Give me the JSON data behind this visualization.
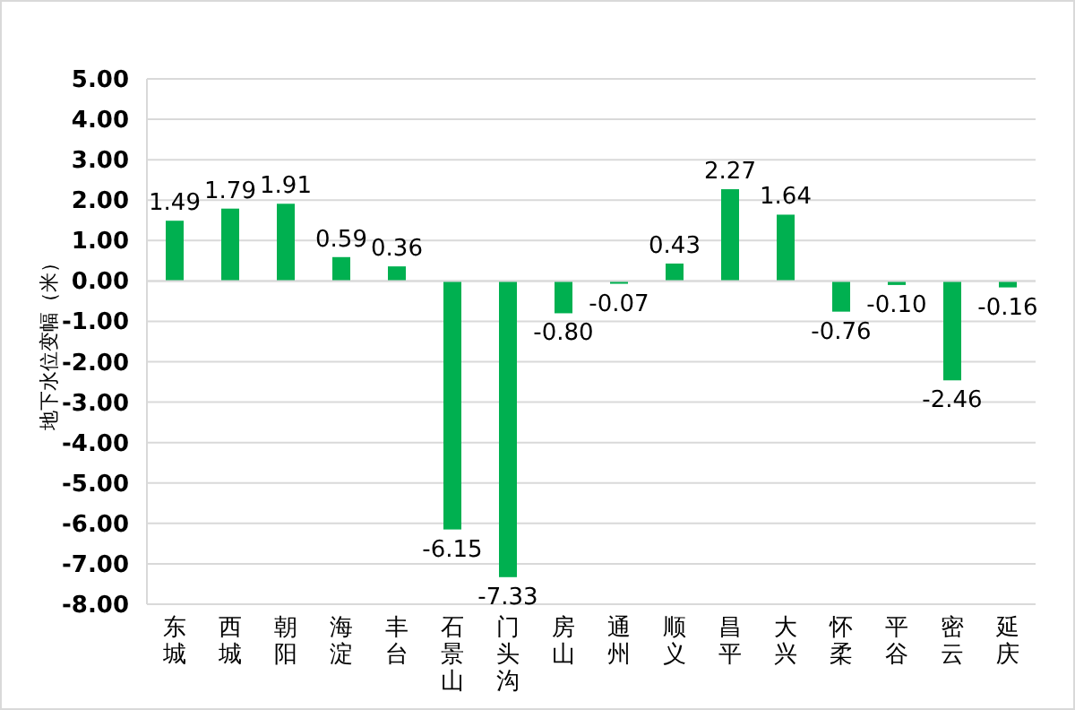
{
  "chart_data": {
    "type": "bar",
    "ylabel": "地下水位变幅（米）",
    "categories": [
      "东城",
      "西城",
      "朝阳",
      "海淀",
      "丰台",
      "石景山",
      "门头沟",
      "房山",
      "通州",
      "顺义",
      "昌平",
      "大兴",
      "怀柔",
      "平谷",
      "密云",
      "延庆"
    ],
    "values": [
      1.49,
      1.79,
      1.91,
      0.59,
      0.36,
      -6.15,
      -7.33,
      -0.8,
      -0.07,
      0.43,
      2.27,
      1.64,
      -0.76,
      -0.1,
      -2.46,
      -0.16
    ],
    "value_labels": [
      "1.49",
      "1.79",
      "1.91",
      "0.59",
      "0.36",
      "-6.15",
      "-7.33",
      "-0.80",
      "-0.07",
      "0.43",
      "2.27",
      "1.64",
      "-0.76",
      "-0.10",
      "-2.46",
      "-0.16"
    ],
    "color": "#00b050",
    "ylim": [
      -8,
      5
    ],
    "yticks": [
      {
        "value": 5,
        "label": "5.00"
      },
      {
        "value": 4,
        "label": "4.00"
      },
      {
        "value": 3,
        "label": "3.00"
      },
      {
        "value": 2,
        "label": "2.00"
      },
      {
        "value": 1,
        "label": "1.00"
      },
      {
        "value": 0,
        "label": "0.00"
      },
      {
        "value": -1,
        "label": "-1.00"
      },
      {
        "value": -2,
        "label": "-2.00"
      },
      {
        "value": -3,
        "label": "-3.00"
      },
      {
        "value": -4,
        "label": "-4.00"
      },
      {
        "value": -5,
        "label": "-5.00"
      },
      {
        "value": -6,
        "label": "-6.00"
      },
      {
        "value": -7,
        "label": "-7.00"
      },
      {
        "value": -8,
        "label": "-8.00"
      }
    ],
    "grid": "y"
  }
}
